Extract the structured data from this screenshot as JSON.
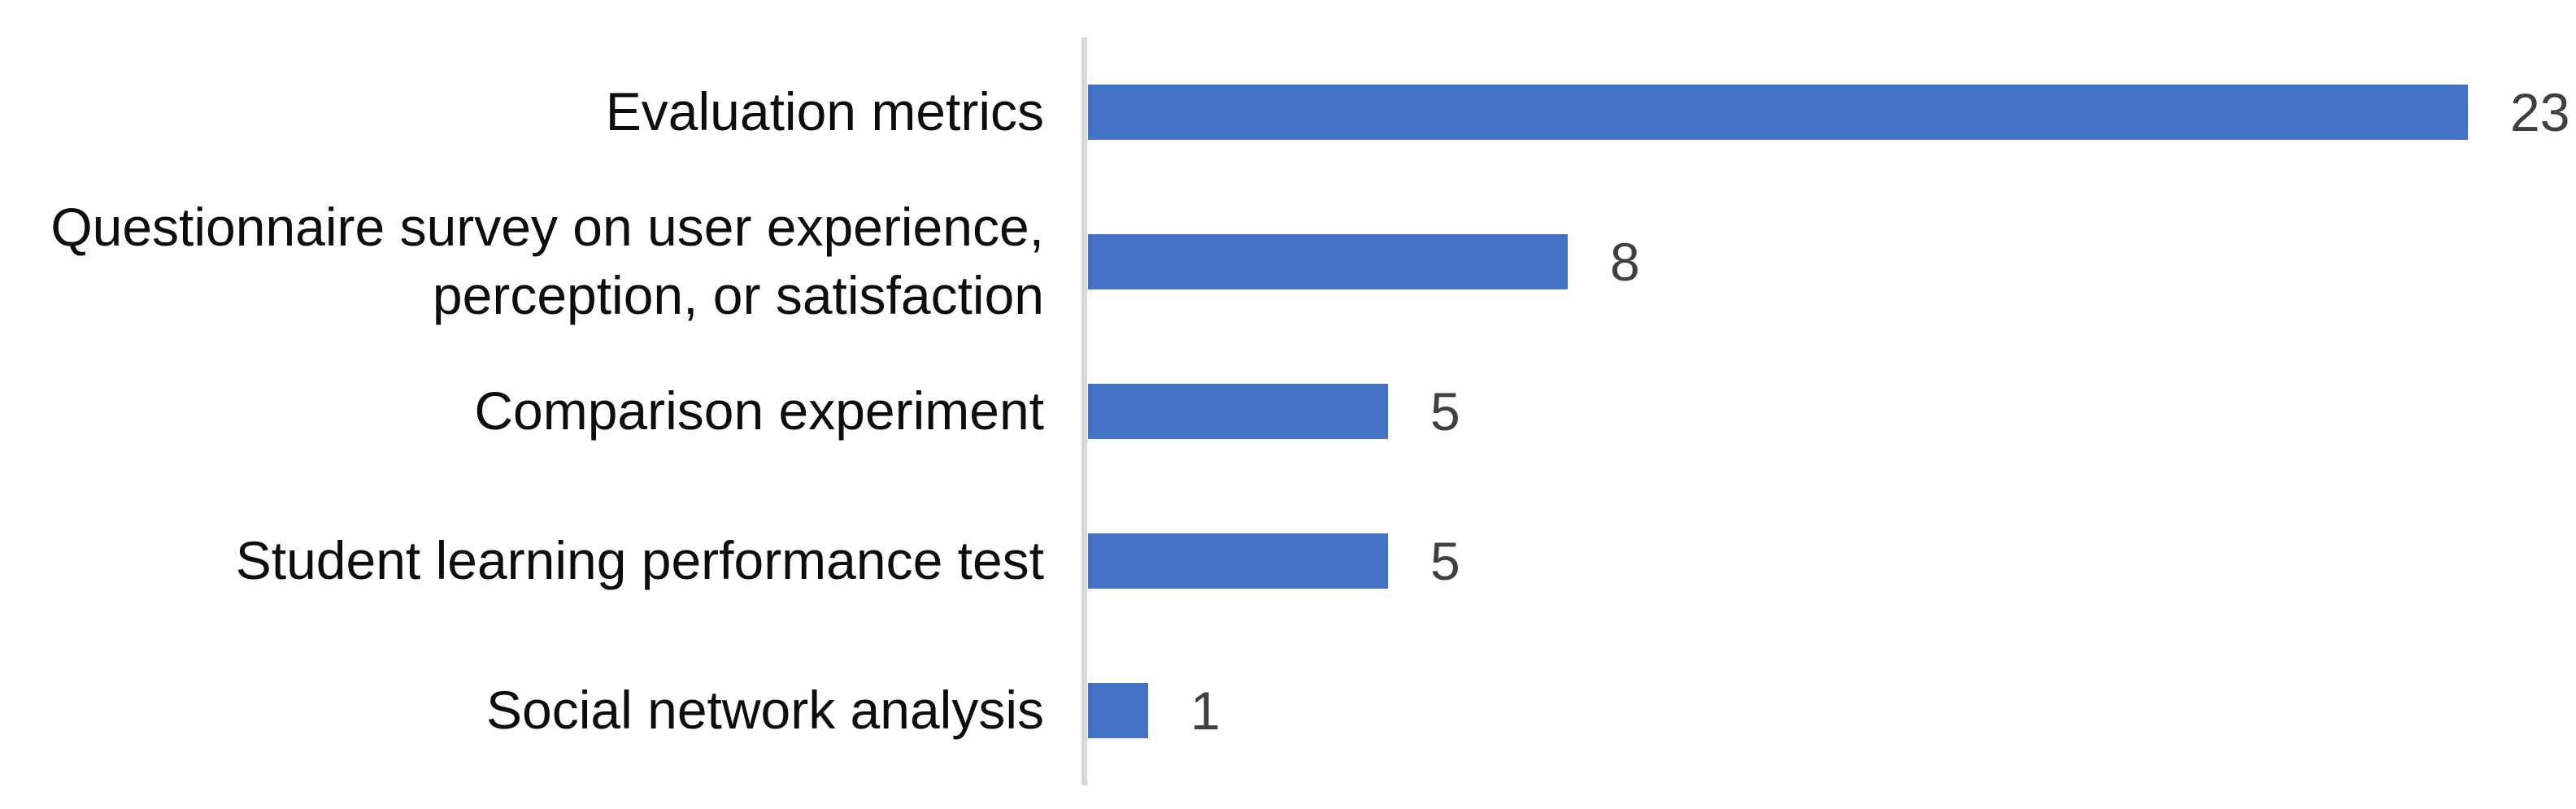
{
  "chart_data": {
    "type": "bar",
    "orientation": "horizontal",
    "title": "",
    "xlabel": "",
    "ylabel": "",
    "categories": [
      "Evaluation metrics",
      "Questionnaire survey on user experience,\nperception, or satisfaction",
      "Comparison experiment",
      "Student learning performance test",
      "Social network analysis"
    ],
    "values": [
      23,
      8,
      5,
      5,
      1
    ],
    "data_labels": [
      "23",
      "8",
      "5",
      "5",
      "1"
    ],
    "xlim": [
      0,
      23
    ],
    "grid": "off",
    "legend": "none",
    "colors": {
      "bar": "#4472C4",
      "axis_line": "#D8D8D8",
      "category_label": "#0D0D0D",
      "value_label": "#404040"
    }
  }
}
